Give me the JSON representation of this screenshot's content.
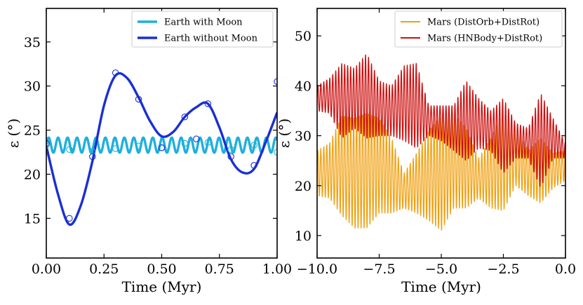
{
  "chart_data": [
    {
      "type": "line",
      "panel": "left",
      "title": "",
      "xlabel": "Time (Myr)",
      "ylabel": "ε (°)",
      "xlim": [
        0,
        1
      ],
      "ylim": [
        10.5,
        38.8
      ],
      "xticks": [
        0,
        0.25,
        0.5,
        0.75,
        1.0
      ],
      "xtick_labels": [
        "0.00",
        "0.25",
        "0.50",
        "0.75",
        "1.00"
      ],
      "yticks": [
        15,
        20,
        25,
        30,
        35
      ],
      "ytick_labels": [
        "15",
        "20",
        "25",
        "30",
        "35"
      ],
      "legend_position": "top-right",
      "series": [
        {
          "name": "Earth with Moon",
          "color": "#1fb0dc",
          "style": "oscillation",
          "x": [
            0.0,
            1.0
          ],
          "mean": 23.3,
          "amplitude": 0.85,
          "period": 0.041
        },
        {
          "name": "Earth without Moon",
          "color": "#1a2fd4",
          "style": "smooth",
          "x": [
            0.0,
            0.05,
            0.1,
            0.15,
            0.2,
            0.25,
            0.3,
            0.35,
            0.4,
            0.45,
            0.5,
            0.55,
            0.6,
            0.65,
            0.7,
            0.75,
            0.8,
            0.85,
            0.9,
            0.95,
            1.0
          ],
          "y": [
            23.2,
            17.8,
            14.3,
            16.5,
            21.5,
            27.8,
            31.2,
            30.9,
            28.7,
            26.0,
            24.3,
            24.8,
            26.5,
            27.6,
            28.0,
            25.3,
            21.7,
            20.2,
            20.6,
            23.6,
            27.0
          ]
        }
      ],
      "markers": [
        {
          "series": "Earth with Moon",
          "color": "#1fb0dc",
          "x": [
            0.0,
            0.1,
            0.2,
            0.3,
            0.4,
            0.5,
            0.6,
            0.7,
            0.8,
            0.9,
            1.0
          ],
          "y": [
            23.3,
            22.8,
            22.6,
            22.9,
            23.2,
            23.0,
            23.5,
            23.6,
            22.8,
            23.3,
            22.5
          ]
        },
        {
          "series": "Earth without Moon",
          "color": "#1a2fd4",
          "x": [
            0.0,
            0.1,
            0.2,
            0.3,
            0.4,
            0.5,
            0.6,
            0.65,
            0.7,
            0.8,
            0.9,
            1.0
          ],
          "y": [
            23.5,
            15.0,
            22.0,
            31.5,
            28.5,
            23.0,
            26.5,
            24.0,
            28.0,
            22.0,
            21.0,
            30.5
          ]
        }
      ]
    },
    {
      "type": "line",
      "panel": "right",
      "title": "",
      "xlabel": "Time (Myr)",
      "ylabel": "ε (°)",
      "xlim": [
        -10,
        0
      ],
      "ylim": [
        5.5,
        55.5
      ],
      "xticks": [
        -10,
        -7.5,
        -5,
        -2.5,
        0
      ],
      "xtick_labels": [
        "−10.0",
        "−7.5",
        "−5.0",
        "−2.5",
        "0.0"
      ],
      "yticks": [
        10,
        20,
        30,
        40,
        50
      ],
      "ytick_labels": [
        "10",
        "20",
        "30",
        "40",
        "50"
      ],
      "legend_position": "top-right",
      "series": [
        {
          "name": "Mars (DistOrb+DistRot)",
          "color": "#f0a010",
          "style": "oscillation",
          "x": [
            -10.0,
            -9.5,
            -9.0,
            -8.5,
            -8.0,
            -7.5,
            -7.0,
            -6.5,
            -6.0,
            -5.5,
            -5.0,
            -4.5,
            -4.0,
            -3.5,
            -3.0,
            -2.5,
            -2.0,
            -1.5,
            -1.0,
            -0.5,
            0.0
          ],
          "mean": [
            22.5,
            23.0,
            24.0,
            22.5,
            23.0,
            24.0,
            22.0,
            19.0,
            20.5,
            22.0,
            22.5,
            25.0,
            23.5,
            21.5,
            22.5,
            25.0,
            26.0,
            22.5,
            23.0,
            23.0,
            24.0
          ],
          "amplitude": [
            4.5,
            5.5,
            10.0,
            11.0,
            11.5,
            9.5,
            7.5,
            3.5,
            6.0,
            9.0,
            11.5,
            9.5,
            8.0,
            4.0,
            7.0,
            10.0,
            6.0,
            4.5,
            6.5,
            3.5,
            3.0
          ],
          "period": 0.12
        },
        {
          "name": "Mars (HNBody+DistRot)",
          "color": "#cc1010",
          "style": "oscillation",
          "x": [
            -10.0,
            -9.5,
            -9.0,
            -8.5,
            -8.0,
            -7.5,
            -7.0,
            -6.5,
            -6.0,
            -5.5,
            -5.0,
            -4.5,
            -4.0,
            -3.5,
            -3.0,
            -2.5,
            -2.0,
            -1.5,
            -1.0,
            -0.5,
            0.0
          ],
          "mean": [
            37.5,
            38.0,
            37.0,
            37.5,
            38.0,
            35.5,
            35.0,
            36.5,
            36.0,
            33.0,
            32.5,
            31.5,
            33.0,
            32.5,
            31.0,
            30.0,
            29.0,
            28.5,
            29.0,
            29.5,
            27.0
          ],
          "amplitude": [
            2.5,
            3.5,
            7.5,
            6.0,
            8.5,
            5.5,
            5.0,
            7.5,
            8.5,
            3.0,
            3.5,
            4.5,
            8.0,
            5.0,
            4.0,
            7.5,
            3.5,
            3.0,
            9.5,
            4.0,
            1.5
          ],
          "period": 0.12
        }
      ]
    }
  ]
}
